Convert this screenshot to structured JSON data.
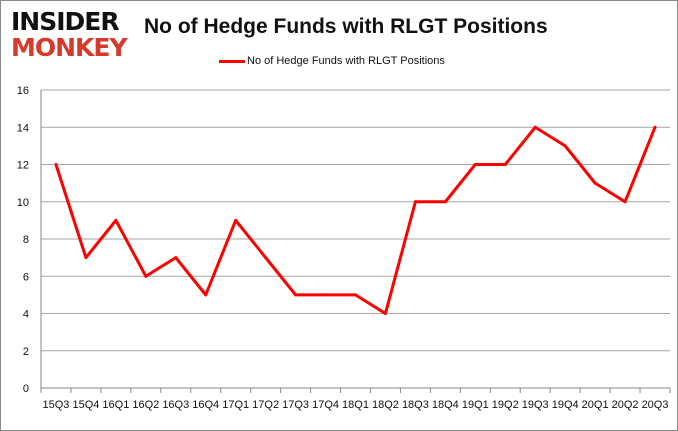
{
  "logo": {
    "line1": "INSIDER",
    "line2": "MONKEY"
  },
  "chart_data": {
    "type": "line",
    "title": "No of Hedge Funds with RLGT Positions",
    "categories": [
      "15Q3",
      "15Q4",
      "16Q1",
      "16Q2",
      "16Q3",
      "16Q4",
      "17Q1",
      "17Q2",
      "17Q3",
      "17Q4",
      "18Q1",
      "18Q2",
      "18Q3",
      "18Q4",
      "19Q1",
      "19Q2",
      "19Q3",
      "19Q4",
      "20Q1",
      "20Q2",
      "20Q3"
    ],
    "series": [
      {
        "name": "No of Hedge Funds with RLGT Positions",
        "color": "#ff0000",
        "values": [
          12,
          7,
          9,
          6,
          7,
          5,
          9,
          7,
          5,
          5,
          5,
          4,
          10,
          10,
          12,
          12,
          14,
          13,
          11,
          10,
          14
        ]
      }
    ],
    "ylim": [
      0,
      16
    ],
    "yticks": [
      0,
      2,
      4,
      6,
      8,
      10,
      12,
      14,
      16
    ],
    "grid": true,
    "legend": "top"
  }
}
